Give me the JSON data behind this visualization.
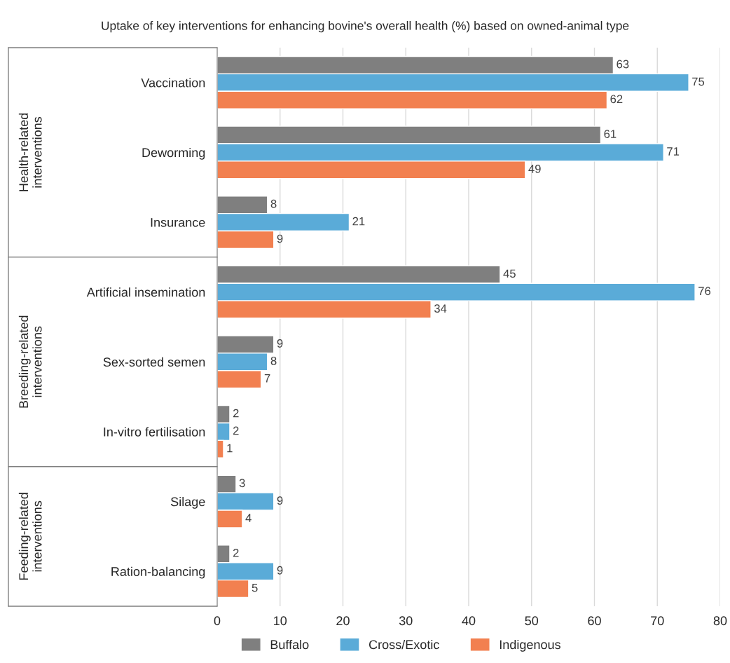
{
  "chart_data": {
    "type": "bar",
    "orientation": "horizontal",
    "title": "Uptake of key interventions for enhancing bovine's overall health (%) based on owned-animal type",
    "categories": [
      "Vaccination",
      "Deworming",
      "Insurance",
      "Artificial insemination",
      "Sex-sorted semen",
      "In-vitro fertilisation",
      "Silage",
      "Ration-balancing"
    ],
    "series": [
      {
        "name": "Buffalo",
        "color": "#7f7f7f",
        "values": [
          63,
          61,
          8,
          45,
          9,
          2,
          3,
          2
        ]
      },
      {
        "name": "Cross/Exotic",
        "color": "#5aabd8",
        "values": [
          75,
          71,
          21,
          76,
          8,
          2,
          9,
          9
        ]
      },
      {
        "name": "Indigenous",
        "color": "#f28050",
        "values": [
          62,
          49,
          9,
          34,
          7,
          1,
          4,
          5
        ]
      }
    ],
    "xlim": [
      0,
      80
    ],
    "xticks": [
      0,
      10,
      20,
      30,
      40,
      50,
      60,
      70,
      80
    ],
    "annotations": [
      "Health-related interventions",
      "Breeding-related interventions",
      "Feeding-related interventions"
    ],
    "data_labels": true,
    "grid": "x",
    "legend": "bottom"
  }
}
